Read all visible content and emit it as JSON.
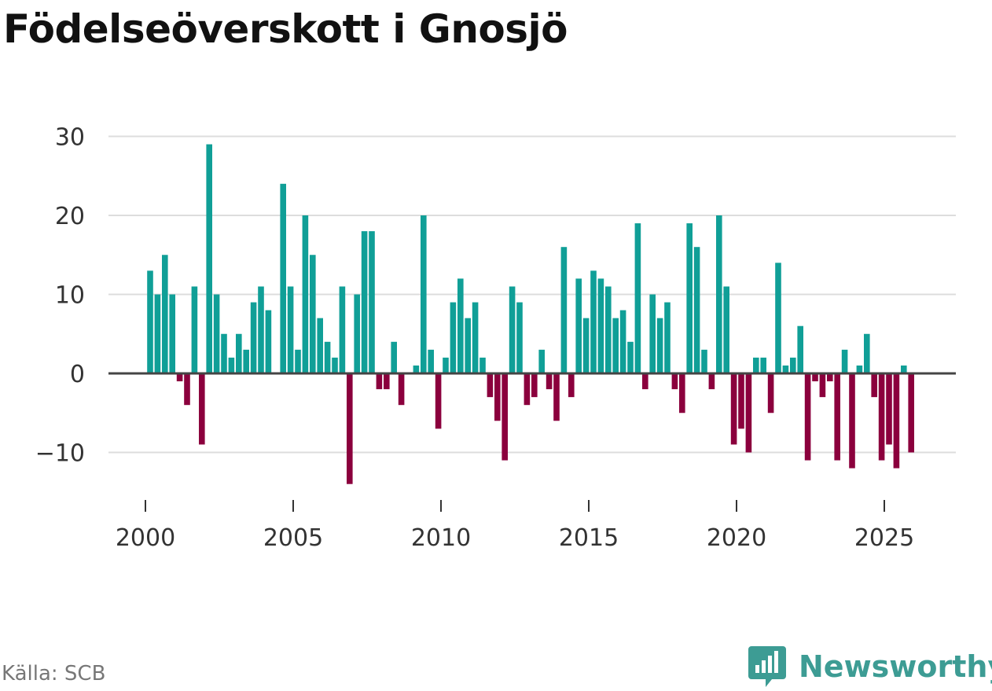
{
  "title": "Födelseöverskott i Gnosjö",
  "source": "Källa: SCB",
  "brand": {
    "name": "Newsworthy",
    "icon": "newsworthy-logo-icon"
  },
  "colors": {
    "positive": "#109f97",
    "negative": "#8b003d",
    "grid": "#dddddd",
    "zero_line": "#444444",
    "brand": "#3d9c94"
  },
  "chart_data": {
    "type": "bar",
    "title": "Födelseöverskott i Gnosjö",
    "xlabel": "",
    "ylabel": "",
    "frequency": "quarterly",
    "x_start": "2000 Q1",
    "ylim": [
      -14,
      30
    ],
    "xlim": [
      2000,
      2026
    ],
    "y_ticks": [
      {
        "value": 30,
        "label": "30"
      },
      {
        "value": 20,
        "label": "20"
      },
      {
        "value": 10,
        "label": "10"
      },
      {
        "value": 0,
        "label": "0"
      },
      {
        "value": -10,
        "label": "−10"
      }
    ],
    "x_ticks": [
      {
        "value": 2000,
        "label": "2000"
      },
      {
        "value": 2005,
        "label": "2005"
      },
      {
        "value": 2010,
        "label": "2010"
      },
      {
        "value": 2015,
        "label": "2015"
      },
      {
        "value": 2020,
        "label": "2020"
      },
      {
        "value": 2025,
        "label": "2025"
      }
    ],
    "grid": true,
    "values": [
      13,
      10,
      15,
      10,
      -1,
      -4,
      11,
      -9,
      29,
      10,
      5,
      2,
      5,
      3,
      9,
      11,
      8,
      0,
      24,
      11,
      3,
      20,
      15,
      7,
      4,
      2,
      11,
      -14,
      10,
      18,
      18,
      -2,
      -2,
      4,
      -4,
      0,
      1,
      20,
      3,
      -7,
      2,
      9,
      12,
      7,
      9,
      2,
      -3,
      -6,
      -11,
      11,
      9,
      -4,
      -3,
      3,
      -2,
      -6,
      16,
      -3,
      12,
      7,
      13,
      12,
      11,
      7,
      8,
      4,
      19,
      -2,
      10,
      7,
      9,
      -2,
      -5,
      19,
      16,
      3,
      -2,
      20,
      11,
      -9,
      -7,
      -10,
      2,
      2,
      -5,
      14,
      1,
      2,
      6,
      -11,
      -1,
      -3,
      -1,
      -11,
      3,
      -12,
      1,
      5,
      -3,
      -11,
      -9,
      -12,
      1,
      -10
    ]
  }
}
